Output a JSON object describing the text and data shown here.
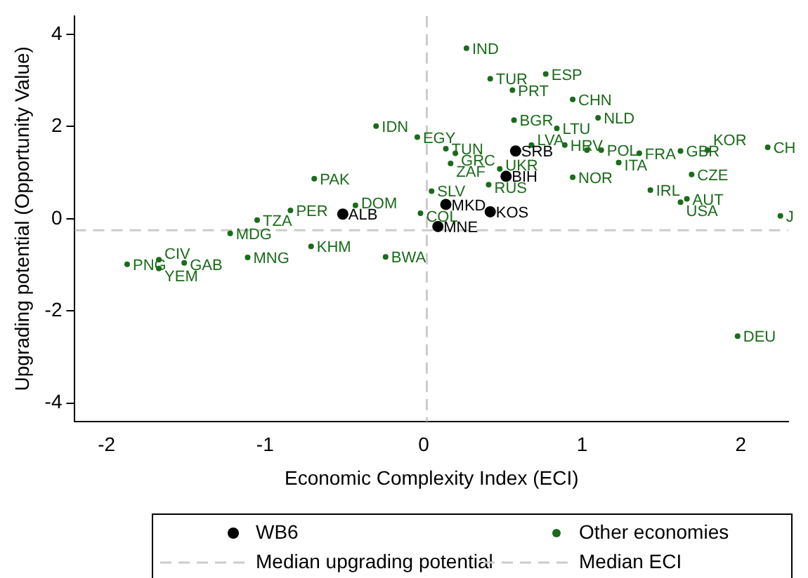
{
  "chart_data": {
    "type": "scatter",
    "xlabel": "Economic Complexity Index (ECI)",
    "ylabel": "Upgrading potential (Opportunity Value)",
    "xlim": [
      -2.2,
      2.3
    ],
    "xticks": [
      -2,
      -1,
      0,
      1,
      2
    ],
    "ylim": [
      -4.4,
      4.4
    ],
    "yticks": [
      -4,
      -2,
      0,
      2,
      4
    ],
    "grid": false,
    "legend": "bottom",
    "marker": "circle",
    "series": [
      {
        "name": "WB6",
        "color": "#000000",
        "x": [
          -0.51,
          0.58,
          0.52,
          0.14,
          0.42,
          0.09
        ],
        "values": [
          0.1,
          1.47,
          0.92,
          0.31,
          0.15,
          -0.17
        ]
      },
      {
        "name": "Other economies",
        "color": "#1a6b1a",
        "x": [
          -0.3,
          -0.69,
          -0.43,
          -0.84,
          -1.05,
          -1.22,
          -0.71,
          -1.11,
          -0.24,
          -1.87,
          -1.67,
          -1.67,
          -1.51,
          -0.04,
          0.27,
          0.42,
          0.77,
          0.56,
          0.94,
          0.57,
          1.1,
          0.84,
          0.14,
          0.2,
          0.17,
          0.68,
          0.89,
          1.03,
          1.12,
          1.36,
          1.23,
          1.62,
          1.79,
          2.17,
          2.25,
          1.69,
          0.48,
          0.41,
          0.94,
          1.43,
          1.66,
          1.62,
          0.05,
          -0.02,
          1.98
        ],
        "values": [
          2.01,
          0.87,
          0.29,
          0.18,
          -0.03,
          -0.32,
          -0.6,
          -0.84,
          -0.83,
          -0.99,
          -0.89,
          -1.08,
          -0.96,
          1.77,
          3.7,
          3.04,
          3.14,
          2.79,
          2.59,
          2.14,
          2.19,
          1.96,
          1.52,
          1.42,
          1.2,
          1.6,
          1.6,
          1.49,
          1.49,
          1.42,
          1.22,
          1.47,
          1.49,
          1.55,
          0.06,
          0.96,
          1.08,
          0.74,
          0.9,
          0.62,
          0.43,
          0.36,
          0.6,
          0.12,
          -2.55
        ]
      }
    ],
    "ref_lines": [
      {
        "axis": "y",
        "value": -0.25,
        "label": "Median upgrading potential",
        "color": "#cccccc",
        "line_style": "dashed"
      },
      {
        "axis": "x",
        "value": 0.02,
        "label": "Median ECI",
        "color": "#cccccc",
        "line_style": "dashed"
      }
    ],
    "annotations": [
      {
        "text": "ALB",
        "x": -0.51,
        "y": 0.1
      },
      {
        "text": "SRB",
        "x": 0.58,
        "y": 1.47
      },
      {
        "text": "BIH",
        "x": 0.52,
        "y": 0.92
      },
      {
        "text": "MKD",
        "x": 0.14,
        "y": 0.31
      },
      {
        "text": "KOS",
        "x": 0.42,
        "y": 0.15
      },
      {
        "text": "MNE",
        "x": 0.09,
        "y": -0.17
      },
      {
        "text": "IDN",
        "x": -0.3,
        "y": 2.01
      },
      {
        "text": "PAK",
        "x": -0.69,
        "y": 0.87
      },
      {
        "text": "DOM",
        "x": -0.43,
        "y": 0.29
      },
      {
        "text": "PER",
        "x": -0.84,
        "y": 0.18
      },
      {
        "text": "TZA",
        "x": -1.05,
        "y": -0.03
      },
      {
        "text": "MDG",
        "x": -1.22,
        "y": -0.32
      },
      {
        "text": "KHM",
        "x": -0.71,
        "y": -0.6
      },
      {
        "text": "MNG",
        "x": -1.11,
        "y": -0.84
      },
      {
        "text": "BWA",
        "x": -0.24,
        "y": -0.83
      },
      {
        "text": "PNG",
        "x": -1.87,
        "y": -0.99
      },
      {
        "text": "CIV",
        "x": -1.67,
        "y": -0.89
      },
      {
        "text": "YEM",
        "x": -1.67,
        "y": -1.08
      },
      {
        "text": "GAB",
        "x": -1.51,
        "y": -0.96
      },
      {
        "text": "EGY",
        "x": -0.04,
        "y": 1.77
      },
      {
        "text": "IND",
        "x": 0.27,
        "y": 3.7
      },
      {
        "text": "TUR",
        "x": 0.42,
        "y": 3.04
      },
      {
        "text": "ESP",
        "x": 0.77,
        "y": 3.14
      },
      {
        "text": "PRT",
        "x": 0.56,
        "y": 2.79
      },
      {
        "text": "CHN",
        "x": 0.94,
        "y": 2.59
      },
      {
        "text": "BGR",
        "x": 0.57,
        "y": 2.14
      },
      {
        "text": "NLD",
        "x": 1.1,
        "y": 2.19
      },
      {
        "text": "LTU",
        "x": 0.84,
        "y": 1.96
      },
      {
        "text": "TUN",
        "x": 0.14,
        "y": 1.52
      },
      {
        "text": "GRC",
        "x": 0.2,
        "y": 1.42
      },
      {
        "text": "ZAF",
        "x": 0.17,
        "y": 1.2
      },
      {
        "text": "LVA",
        "x": 0.68,
        "y": 1.6
      },
      {
        "text": "HRV",
        "x": 0.89,
        "y": 1.6
      },
      {
        "text": "POL",
        "x": 1.12,
        "y": 1.49
      },
      {
        "text": "FRA",
        "x": 1.36,
        "y": 1.42
      },
      {
        "text": "ITA",
        "x": 1.23,
        "y": 1.22
      },
      {
        "text": "GBR",
        "x": 1.62,
        "y": 1.47
      },
      {
        "text": "KOR",
        "x": 1.79,
        "y": 1.49
      },
      {
        "text": "CH",
        "x": 2.17,
        "y": 1.55
      },
      {
        "text": "J",
        "x": 2.25,
        "y": 0.06
      },
      {
        "text": "CZE",
        "x": 1.69,
        "y": 0.96
      },
      {
        "text": "UKR",
        "x": 0.48,
        "y": 1.08
      },
      {
        "text": "RUS",
        "x": 0.41,
        "y": 0.74
      },
      {
        "text": "NOR",
        "x": 0.94,
        "y": 0.9
      },
      {
        "text": "IRL",
        "x": 1.43,
        "y": 0.62
      },
      {
        "text": "AUT",
        "x": 1.66,
        "y": 0.43
      },
      {
        "text": "USA",
        "x": 1.62,
        "y": 0.36
      },
      {
        "text": "SLV",
        "x": 0.05,
        "y": 0.6
      },
      {
        "text": "COL",
        "x": -0.02,
        "y": 0.12
      },
      {
        "text": "DEU",
        "x": 1.98,
        "y": -2.55
      }
    ]
  }
}
